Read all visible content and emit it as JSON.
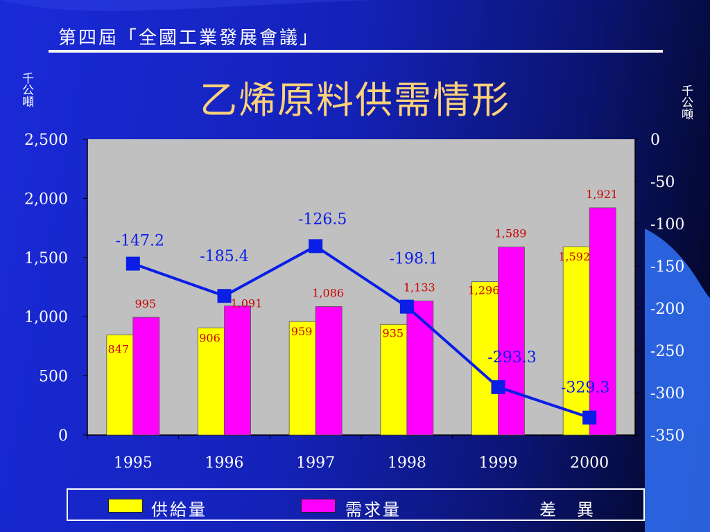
{
  "header": {
    "title": "第四屆「全國工業發展會議」"
  },
  "slide": {
    "title": "乙烯原料供需情形"
  },
  "units": {
    "left": "千公噸",
    "right": "千公噸"
  },
  "colors": {
    "supply": "#ffff00",
    "demand": "#ff00ff",
    "gap_line": "#0a1ee6",
    "plot_bg": "#c0c0c0",
    "title": "#ffd27a",
    "value_label": "#cc0000",
    "gap_label": "#0a1ee6"
  },
  "chart_data": {
    "type": "bar",
    "title": "乙烯原料供需情形",
    "categories": [
      "1995",
      "1996",
      "1997",
      "1998",
      "1999",
      "2000"
    ],
    "series": [
      {
        "name": "供給量",
        "axis": "left",
        "type": "bar",
        "values": [
          847,
          906,
          959,
          935,
          1296,
          1592
        ],
        "labels": [
          "847",
          "906",
          "959",
          "935",
          "1,296",
          "1,592"
        ]
      },
      {
        "name": "需求量",
        "axis": "left",
        "type": "bar",
        "values": [
          995,
          1091,
          1086,
          1133,
          1589,
          1921
        ],
        "labels": [
          "995",
          "1,091",
          "1,086",
          "1,133",
          "1,589",
          "1,921"
        ]
      },
      {
        "name": "差　異",
        "axis": "right",
        "type": "line",
        "values": [
          -147.2,
          -185.4,
          -126.5,
          -198.1,
          -293.3,
          -329.3
        ],
        "labels": [
          "-147.2",
          "-185.4",
          "-126.5",
          "-198.1",
          "-293.3",
          "-329.3"
        ]
      }
    ],
    "y_left": {
      "min": 0,
      "max": 2500,
      "ticks": [
        "0",
        "500",
        "1,000",
        "1,500",
        "2,000",
        "2,500"
      ],
      "tick_values": [
        0,
        500,
        1000,
        1500,
        2000,
        2500
      ]
    },
    "y_right": {
      "min": -350,
      "max": 0,
      "ticks": [
        "0",
        "-50",
        "-100",
        "-150",
        "-200",
        "-250",
        "-300",
        "-350"
      ],
      "tick_values": [
        0,
        -50,
        -100,
        -150,
        -200,
        -250,
        -300,
        -350
      ]
    },
    "grid": false,
    "legend_position": "bottom"
  }
}
